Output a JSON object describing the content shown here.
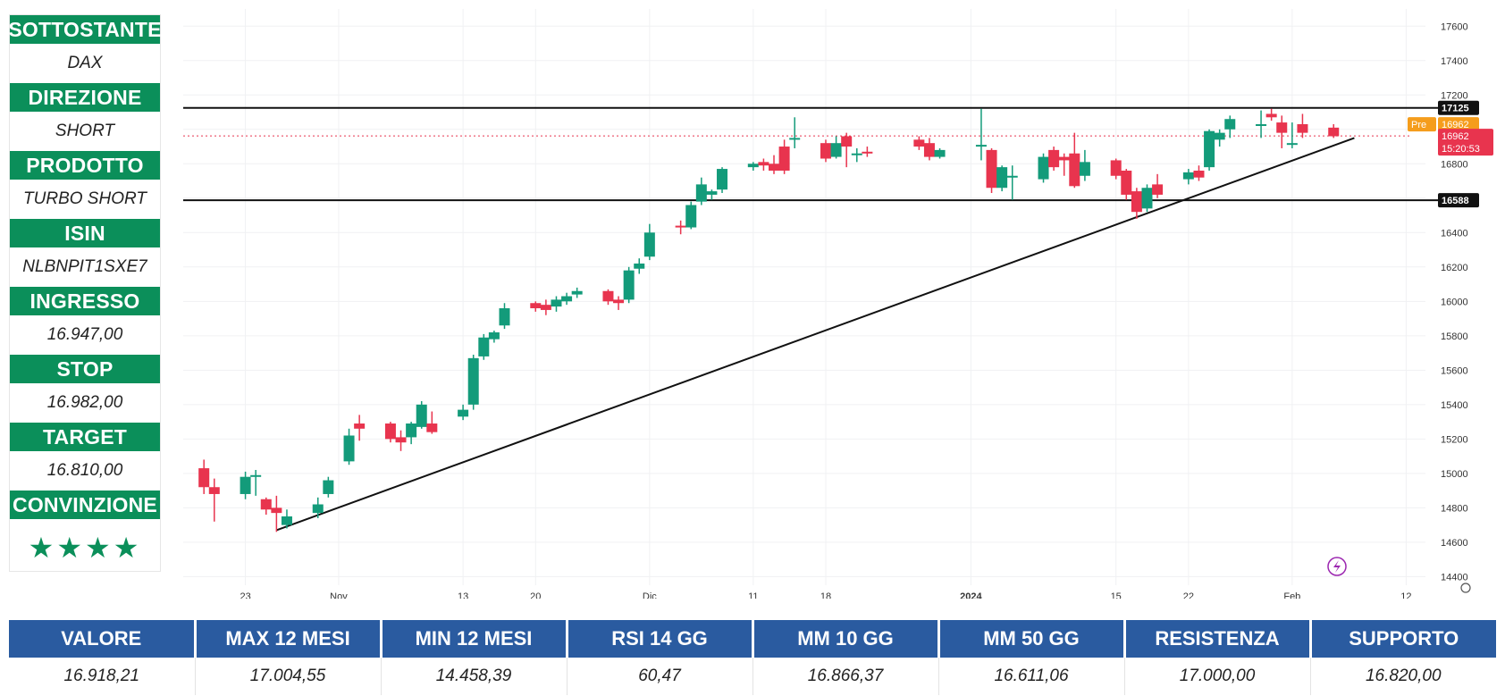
{
  "sidebar": {
    "items": [
      {
        "label": "SOTTOSTANTE",
        "value": "DAX"
      },
      {
        "label": "DIREZIONE",
        "value": "SHORT"
      },
      {
        "label": "PRODOTTO",
        "value": "TURBO SHORT"
      },
      {
        "label": "ISIN",
        "value": "NLBNPIT1SXE7"
      },
      {
        "label": "INGRESSO",
        "value": "16.947,00"
      },
      {
        "label": "STOP",
        "value": "16.982,00"
      },
      {
        "label": "TARGET",
        "value": "16.810,00"
      }
    ],
    "conviction_label": "CONVINZIONE",
    "conviction_stars": 4,
    "star_color": "#0b8f5a",
    "accent": "#0b8f5a"
  },
  "chart_data": {
    "type": "candlestick",
    "ylim": [
      14350,
      17700
    ],
    "yticks": [
      14400,
      14600,
      14800,
      15000,
      15200,
      15400,
      15600,
      15800,
      16000,
      16200,
      16400,
      16600,
      16800,
      17000,
      17200,
      17400,
      17600
    ],
    "ytick_labels": [
      "14400",
      "14600",
      "14800",
      "15000",
      "15200",
      "15400",
      "15600",
      "15800",
      "16000",
      "16200",
      "16400",
      "16600",
      "16800",
      "",
      "17200",
      "17400",
      "17600"
    ],
    "xticks": [
      {
        "label": "23",
        "date": "2023-10-23"
      },
      {
        "label": "Nov",
        "date": "2023-11-01"
      },
      {
        "label": "13",
        "date": "2023-11-13"
      },
      {
        "label": "20",
        "date": "2023-11-20"
      },
      {
        "label": "Dic",
        "date": "2023-12-01"
      },
      {
        "label": "11",
        "date": "2023-12-11"
      },
      {
        "label": "18",
        "date": "2023-12-18"
      },
      {
        "label": "2024",
        "date": "2024-01-01"
      },
      {
        "label": "15",
        "date": "2024-01-15"
      },
      {
        "label": "22",
        "date": "2024-01-22"
      },
      {
        "label": "Feb",
        "date": "2024-02-01"
      },
      {
        "label": "12",
        "date": "2024-02-12"
      }
    ],
    "up_color": "#139b7a",
    "down_color": "#e8344e",
    "candles": [
      {
        "date": "2023-10-19",
        "o": 15030,
        "h": 15080,
        "c": 14920,
        "l": 14880
      },
      {
        "date": "2023-10-20",
        "o": 14920,
        "h": 14970,
        "c": 14880,
        "l": 14720
      },
      {
        "date": "2023-10-23",
        "o": 14880,
        "h": 15010,
        "c": 14980,
        "l": 14850
      },
      {
        "date": "2023-10-24",
        "o": 14990,
        "h": 15020,
        "c": 14990,
        "l": 14870
      },
      {
        "date": "2023-10-25",
        "o": 14850,
        "h": 14860,
        "c": 14790,
        "l": 14760
      },
      {
        "date": "2023-10-26",
        "o": 14800,
        "h": 14870,
        "c": 14770,
        "l": 14660
      },
      {
        "date": "2023-10-27",
        "o": 14700,
        "h": 14790,
        "c": 14750,
        "l": 14680
      },
      {
        "date": "2023-10-30",
        "o": 14770,
        "h": 14860,
        "c": 14820,
        "l": 14740
      },
      {
        "date": "2023-10-31",
        "o": 14880,
        "h": 14980,
        "c": 14960,
        "l": 14860
      },
      {
        "date": "2023-11-02",
        "o": 15070,
        "h": 15260,
        "c": 15220,
        "l": 15050
      },
      {
        "date": "2023-11-03",
        "o": 15290,
        "h": 15340,
        "c": 15260,
        "l": 15190
      },
      {
        "date": "2023-11-06",
        "o": 15290,
        "h": 15300,
        "c": 15200,
        "l": 15180
      },
      {
        "date": "2023-11-07",
        "o": 15210,
        "h": 15250,
        "c": 15180,
        "l": 15130
      },
      {
        "date": "2023-11-08",
        "o": 15210,
        "h": 15300,
        "c": 15290,
        "l": 15170
      },
      {
        "date": "2023-11-09",
        "o": 15270,
        "h": 15420,
        "c": 15400,
        "l": 15260
      },
      {
        "date": "2023-11-10",
        "o": 15290,
        "h": 15360,
        "c": 15240,
        "l": 15230
      },
      {
        "date": "2023-11-13",
        "o": 15330,
        "h": 15400,
        "c": 15370,
        "l": 15310
      },
      {
        "date": "2023-11-14",
        "o": 15400,
        "h": 15690,
        "c": 15670,
        "l": 15370
      },
      {
        "date": "2023-11-15",
        "o": 15680,
        "h": 15810,
        "c": 15790,
        "l": 15660
      },
      {
        "date": "2023-11-16",
        "o": 15780,
        "h": 15830,
        "c": 15820,
        "l": 15760
      },
      {
        "date": "2023-11-17",
        "o": 15860,
        "h": 15990,
        "c": 15960,
        "l": 15840
      },
      {
        "date": "2023-11-20",
        "o": 15990,
        "h": 16000,
        "c": 15960,
        "l": 15940
      },
      {
        "date": "2023-11-21",
        "o": 15980,
        "h": 16010,
        "c": 15950,
        "l": 15920
      },
      {
        "date": "2023-11-22",
        "o": 15970,
        "h": 16030,
        "c": 16010,
        "l": 15940
      },
      {
        "date": "2023-11-23",
        "o": 16000,
        "h": 16050,
        "c": 16030,
        "l": 15980
      },
      {
        "date": "2023-11-24",
        "o": 16040,
        "h": 16080,
        "c": 16060,
        "l": 16020
      },
      {
        "date": "2023-11-27",
        "o": 16060,
        "h": 16070,
        "c": 16000,
        "l": 15980
      },
      {
        "date": "2023-11-28",
        "o": 16010,
        "h": 16030,
        "c": 15990,
        "l": 15950
      },
      {
        "date": "2023-11-29",
        "o": 16010,
        "h": 16200,
        "c": 16180,
        "l": 15990
      },
      {
        "date": "2023-11-30",
        "o": 16190,
        "h": 16250,
        "c": 16220,
        "l": 16160
      },
      {
        "date": "2023-12-01",
        "o": 16260,
        "h": 16450,
        "c": 16400,
        "l": 16240
      },
      {
        "date": "2023-12-04",
        "o": 16440,
        "h": 16470,
        "c": 16430,
        "l": 16390
      },
      {
        "date": "2023-12-05",
        "o": 16430,
        "h": 16580,
        "c": 16560,
        "l": 16420
      },
      {
        "date": "2023-12-06",
        "o": 16580,
        "h": 16720,
        "c": 16680,
        "l": 16560
      },
      {
        "date": "2023-12-07",
        "o": 16620,
        "h": 16650,
        "c": 16640,
        "l": 16590
      },
      {
        "date": "2023-12-08",
        "o": 16650,
        "h": 16780,
        "c": 16770,
        "l": 16630
      },
      {
        "date": "2023-12-11",
        "o": 16780,
        "h": 16810,
        "c": 16800,
        "l": 16760
      },
      {
        "date": "2023-12-12",
        "o": 16810,
        "h": 16830,
        "c": 16790,
        "l": 16760
      },
      {
        "date": "2023-12-13",
        "o": 16800,
        "h": 16850,
        "c": 16760,
        "l": 16740
      },
      {
        "date": "2023-12-14",
        "o": 16900,
        "h": 16940,
        "c": 16760,
        "l": 16740
      },
      {
        "date": "2023-12-15",
        "o": 16940,
        "h": 17070,
        "c": 16950,
        "l": 16890
      },
      {
        "date": "2023-12-18",
        "o": 16920,
        "h": 16940,
        "c": 16830,
        "l": 16810
      },
      {
        "date": "2023-12-19",
        "o": 16840,
        "h": 16960,
        "c": 16920,
        "l": 16830
      },
      {
        "date": "2023-12-20",
        "o": 16960,
        "h": 16980,
        "c": 16900,
        "l": 16780
      },
      {
        "date": "2023-12-21",
        "o": 16860,
        "h": 16890,
        "c": 16860,
        "l": 16810
      },
      {
        "date": "2023-12-22",
        "o": 16870,
        "h": 16900,
        "c": 16860,
        "l": 16840
      },
      {
        "date": "2023-12-27",
        "o": 16940,
        "h": 16960,
        "c": 16900,
        "l": 16880
      },
      {
        "date": "2023-12-28",
        "o": 16920,
        "h": 16950,
        "c": 16840,
        "l": 16820
      },
      {
        "date": "2023-12-29",
        "o": 16840,
        "h": 16890,
        "c": 16880,
        "l": 16830
      },
      {
        "date": "2024-01-02",
        "o": 16900,
        "h": 17120,
        "c": 16910,
        "l": 16820
      },
      {
        "date": "2024-01-03",
        "o": 16880,
        "h": 16890,
        "c": 16660,
        "l": 16630
      },
      {
        "date": "2024-01-04",
        "o": 16660,
        "h": 16790,
        "c": 16780,
        "l": 16640
      },
      {
        "date": "2024-01-05",
        "o": 16730,
        "h": 16790,
        "c": 16730,
        "l": 16590
      },
      {
        "date": "2024-01-08",
        "o": 16710,
        "h": 16860,
        "c": 16840,
        "l": 16690
      },
      {
        "date": "2024-01-09",
        "o": 16880,
        "h": 16900,
        "c": 16780,
        "l": 16760
      },
      {
        "date": "2024-01-10",
        "o": 16840,
        "h": 16860,
        "c": 16820,
        "l": 16730
      },
      {
        "date": "2024-01-11",
        "o": 16860,
        "h": 16980,
        "c": 16670,
        "l": 16660
      },
      {
        "date": "2024-01-12",
        "o": 16730,
        "h": 16880,
        "c": 16810,
        "l": 16700
      },
      {
        "date": "2024-01-15",
        "o": 16820,
        "h": 16830,
        "c": 16730,
        "l": 16710
      },
      {
        "date": "2024-01-16",
        "o": 16760,
        "h": 16770,
        "c": 16620,
        "l": 16590
      },
      {
        "date": "2024-01-17",
        "o": 16640,
        "h": 16660,
        "c": 16520,
        "l": 16480
      },
      {
        "date": "2024-01-18",
        "o": 16540,
        "h": 16680,
        "c": 16660,
        "l": 16520
      },
      {
        "date": "2024-01-19",
        "o": 16680,
        "h": 16740,
        "c": 16620,
        "l": 16600
      },
      {
        "date": "2024-01-22",
        "o": 16710,
        "h": 16770,
        "c": 16750,
        "l": 16680
      },
      {
        "date": "2024-01-23",
        "o": 16760,
        "h": 16790,
        "c": 16720,
        "l": 16700
      },
      {
        "date": "2024-01-24",
        "o": 16780,
        "h": 17000,
        "c": 16990,
        "l": 16760
      },
      {
        "date": "2024-01-25",
        "o": 16940,
        "h": 17000,
        "c": 16980,
        "l": 16900
      },
      {
        "date": "2024-01-26",
        "o": 17000,
        "h": 17080,
        "c": 17060,
        "l": 16950
      },
      {
        "date": "2024-01-29",
        "o": 17020,
        "h": 17110,
        "c": 17030,
        "l": 16950
      },
      {
        "date": "2024-01-30",
        "o": 17090,
        "h": 17120,
        "c": 17070,
        "l": 17050
      },
      {
        "date": "2024-01-31",
        "o": 17040,
        "h": 17080,
        "c": 16980,
        "l": 16890
      },
      {
        "date": "2024-02-01",
        "o": 16920,
        "h": 17040,
        "c": 16920,
        "l": 16890
      },
      {
        "date": "2024-02-02",
        "o": 17030,
        "h": 17090,
        "c": 16980,
        "l": 16950
      },
      {
        "date": "2024-02-05",
        "o": 17010,
        "h": 17030,
        "c": 16960,
        "l": 16950
      }
    ],
    "resistance": {
      "value": 17125,
      "label": "17125"
    },
    "support": {
      "value": 16588,
      "label": "16588"
    },
    "trendline": {
      "start": {
        "date": "2023-10-26",
        "value": 14670
      },
      "end": {
        "date": "2024-02-07",
        "value": 16950
      }
    },
    "last_price": {
      "value": 16962,
      "label": "16962",
      "countdown": "15:20:53"
    },
    "premarket": {
      "tag": "Pre",
      "label": "16962"
    }
  },
  "table": {
    "headers": [
      "VALORE",
      "MAX 12 MESI",
      "MIN 12 MESI",
      "RSI 14 GG",
      "MM 10 GG",
      "MM 50 GG",
      "RESISTENZA",
      "SUPPORTO"
    ],
    "values": [
      "16.918,21",
      "17.004,55",
      "14.458,39",
      "60,47",
      "16.866,37",
      "16.611,06",
      "17.000,00",
      "16.820,00"
    ],
    "header_color": "#2a5ba0"
  }
}
